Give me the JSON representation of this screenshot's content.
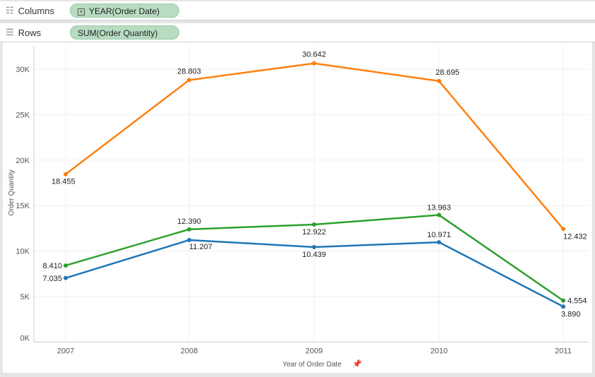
{
  "shelves": {
    "columns_label": "Columns",
    "columns_pill": "YEAR(Order Date)",
    "rows_label": "Rows",
    "rows_pill": "SUM(Order Quantity)"
  },
  "chart_data": {
    "type": "line",
    "xlabel": "Year of Order Date",
    "ylabel": "Order Quantity",
    "categories": [
      "2007",
      "2008",
      "2009",
      "2010",
      "2011"
    ],
    "yticks": [
      "0K",
      "5K",
      "10K",
      "15K",
      "20K",
      "25K",
      "30K"
    ],
    "ylim": [
      0,
      32500
    ],
    "grid": true,
    "series": [
      {
        "color": "#ff7f0e",
        "values": [
          18455,
          28803,
          30642,
          28695,
          12432
        ],
        "labels": [
          "18.455",
          "28.803",
          "30.642",
          "28.695",
          "12.432"
        ]
      },
      {
        "color": "#2ca02c",
        "values": [
          8410,
          12390,
          12922,
          13963,
          4554
        ],
        "labels": [
          "8.410",
          "12.390",
          "12.922",
          "13.963",
          "4.554"
        ]
      },
      {
        "color": "#1f77b4",
        "values": [
          7035,
          11207,
          10439,
          10971,
          3890
        ],
        "labels": [
          "7.035",
          "11.207",
          "10.439",
          "10.971",
          "3.890"
        ]
      }
    ]
  }
}
